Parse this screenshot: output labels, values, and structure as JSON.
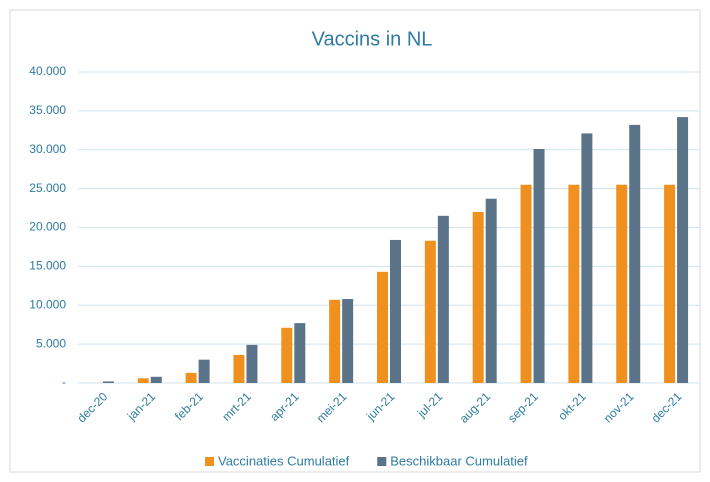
{
  "chart_data": {
    "type": "bar",
    "title": "Vaccins in NL",
    "categories": [
      "dec-20",
      "jan-21",
      "feb-21",
      "mrt-21",
      "apr-21",
      "mei-21",
      "jun-21",
      "jul-21",
      "aug-21",
      "sep-21",
      "okt-21",
      "nov-21",
      "dec-21"
    ],
    "series": [
      {
        "name": "Vaccinaties Cumulatief",
        "color": "#f0901e",
        "values": [
          0,
          600,
          1300,
          3600,
          7100,
          10700,
          14300,
          18300,
          22000,
          25500,
          25500,
          25500,
          25500
        ]
      },
      {
        "name": "Beschikbaar Cumulatief",
        "color": "#5b7389",
        "values": [
          200,
          800,
          3000,
          4900,
          7700,
          10800,
          18400,
          21500,
          23700,
          30100,
          32100,
          33200,
          34200
        ]
      }
    ],
    "ylim": [
      0,
      40000
    ],
    "yticks": [
      {
        "value": 0,
        "label": "-"
      },
      {
        "value": 5000,
        "label": "5.000"
      },
      {
        "value": 10000,
        "label": "10.000"
      },
      {
        "value": 15000,
        "label": "15.000"
      },
      {
        "value": 20000,
        "label": "20.000"
      },
      {
        "value": 25000,
        "label": "25.000"
      },
      {
        "value": 30000,
        "label": "30.000"
      },
      {
        "value": 35000,
        "label": "35.000"
      },
      {
        "value": 40000,
        "label": "40.000"
      }
    ],
    "grid": true,
    "legend": "bottom"
  }
}
